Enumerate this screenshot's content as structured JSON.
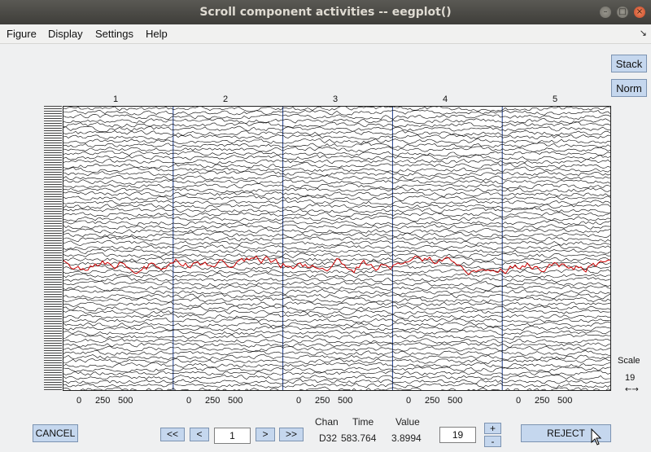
{
  "window": {
    "title": "Scroll component activities -- eegplot()"
  },
  "window_controls": {
    "minimize": "–",
    "maximize": "□",
    "close": "×"
  },
  "menubar": {
    "items": [
      "Figure",
      "Display",
      "Settings",
      "Help"
    ],
    "corner_icon": "↘"
  },
  "side_buttons": {
    "stack": "Stack",
    "norm": "Norm"
  },
  "plot": {
    "epoch_labels": [
      "1",
      "2",
      "3",
      "4",
      "5"
    ],
    "xticks": [
      "0",
      "250",
      "500"
    ],
    "trace_color": "#000000",
    "highlight_color": "#cc0000"
  },
  "scale": {
    "title": "Scale",
    "value": "19",
    "bar_icon": "←→"
  },
  "bottom": {
    "cancel": "CANCEL",
    "fast_back": "<<",
    "back": "<",
    "epoch_input": "1",
    "forward": ">",
    "fast_forward": ">>",
    "readout_headers": {
      "chan": "Chan",
      "time": "Time",
      "value": "Value"
    },
    "readout_values": {
      "chan": "D32",
      "time": "583.764",
      "value": "3.8994"
    },
    "scale_input": "19",
    "plus": "+",
    "minus": "-",
    "reject": "REJECT"
  }
}
